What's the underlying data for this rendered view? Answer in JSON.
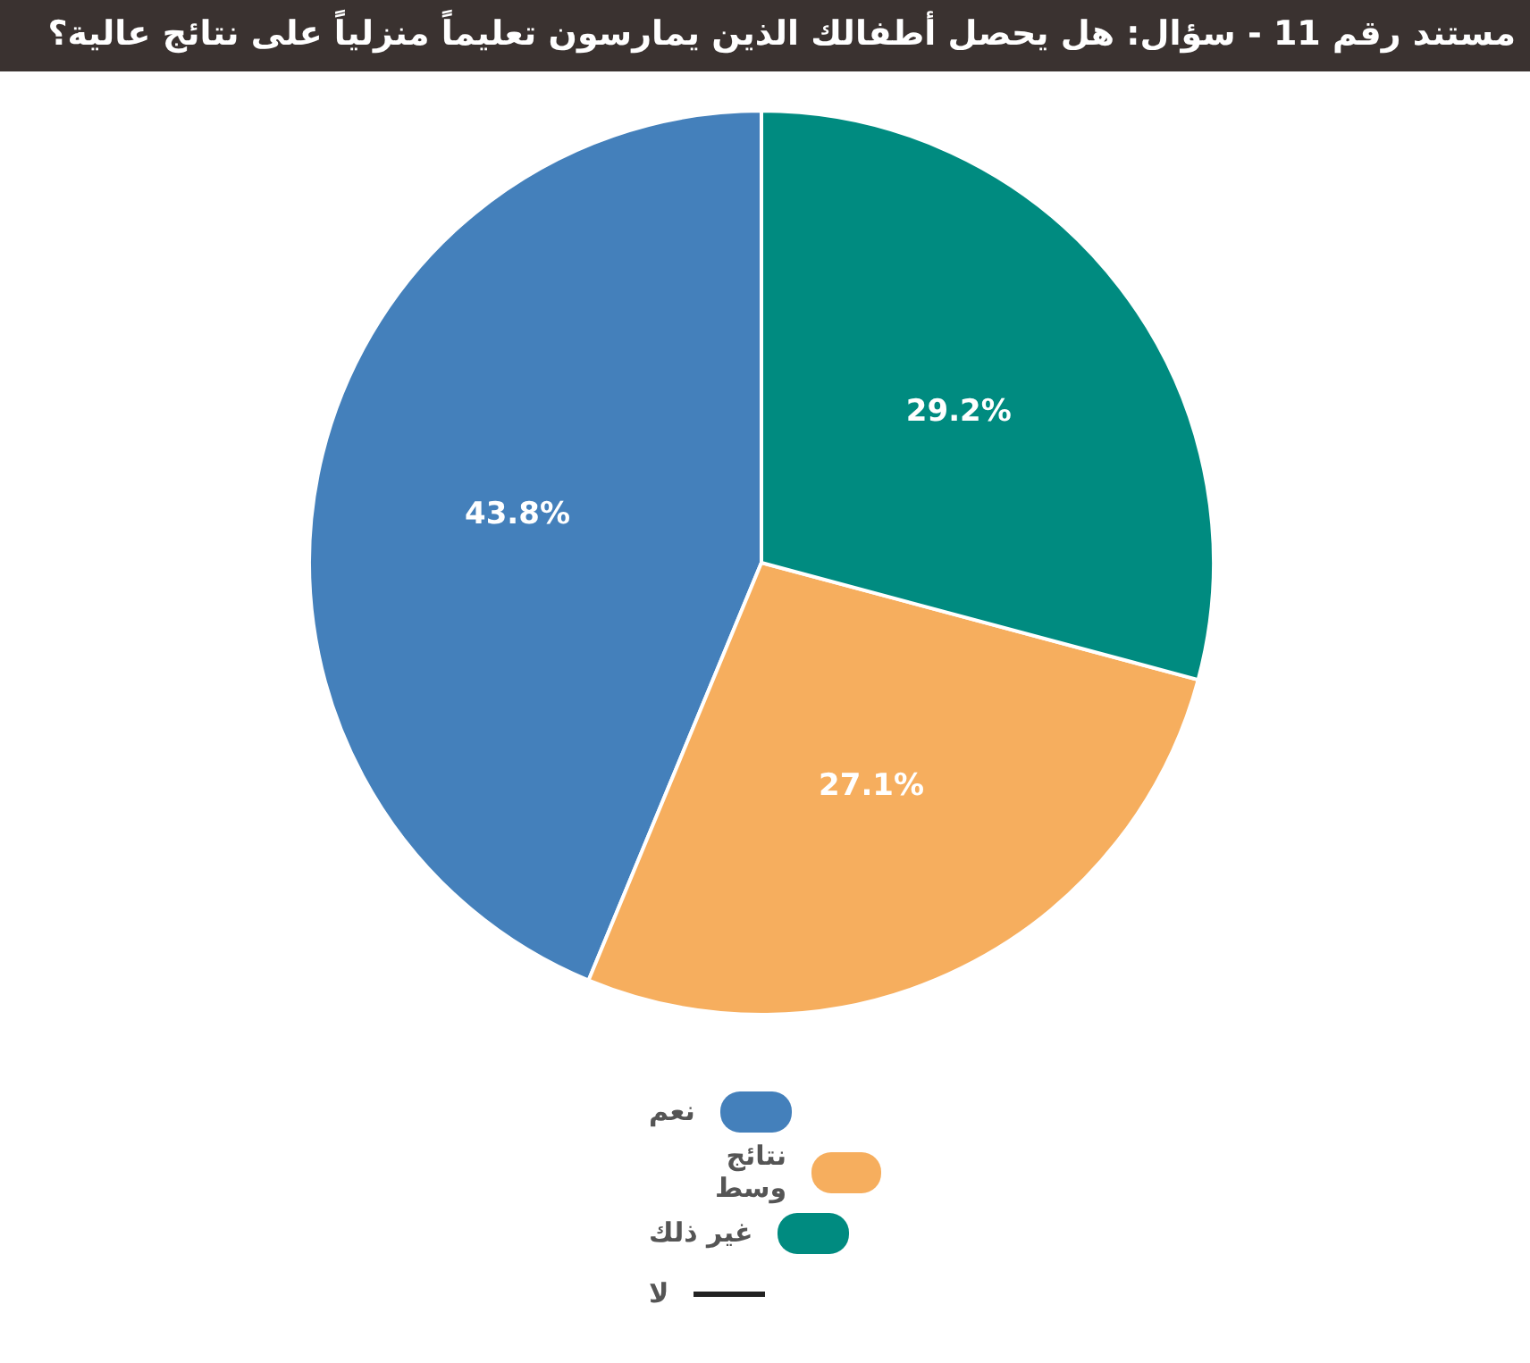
{
  "chart_data": {
    "type": "pie",
    "title": "مستند رقم 11 - سؤال: هل يحصل أطفالك الذين يمارسون تعليماً منزلياً على نتائج عالية؟",
    "categories": [
      "نعم",
      "نتائج وسط",
      "غير ذلك",
      "لا"
    ],
    "values": [
      43.8,
      27.1,
      29.2,
      0
    ],
    "colors": [
      "#4480bb",
      "#f6ae5e",
      "#008b80",
      "#222222"
    ],
    "value_labels": [
      "43.8%",
      "27.1%",
      "29.2%",
      null
    ],
    "legend": "bottom"
  }
}
